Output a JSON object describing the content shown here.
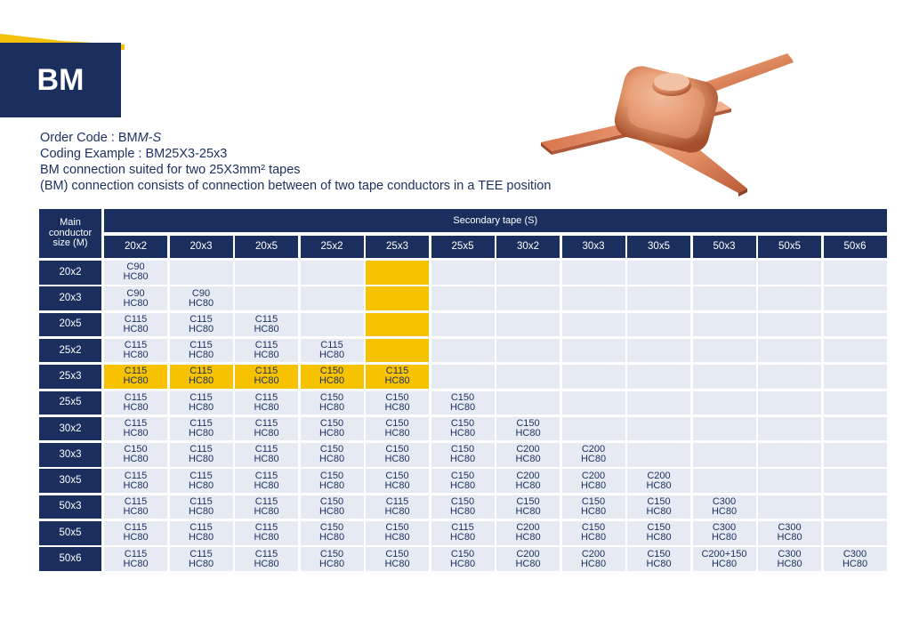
{
  "colors": {
    "navy": "#1b2f5f",
    "highlight": "#f7c300",
    "cell": "#e6eaf3",
    "accent": "#f4c20d"
  },
  "badge": "BM",
  "info": {
    "order_prefix": "Order Code : BM",
    "order_italic": "M-S",
    "coding": "Coding Example : BM25X3-25x3",
    "suited": "BM connection suited for two 25X3mm² tapes",
    "consists": "(BM) connection consists of connection between of two tape conductors  in a TEE position"
  },
  "table": {
    "main_header": "Main conductor size (M)",
    "secondary_header": "Secondary tape (S)",
    "columns": [
      "20x2",
      "20x3",
      "20x5",
      "25x2",
      "25x3",
      "25x5",
      "30x2",
      "30x3",
      "30x5",
      "50x3",
      "50x5",
      "50x6"
    ],
    "rows": [
      {
        "label": "20x2",
        "cells": [
          [
            "C90",
            "HC80"
          ]
        ]
      },
      {
        "label": "20x3",
        "cells": [
          [
            "C90",
            "HC80"
          ],
          [
            "C90",
            "HC80"
          ]
        ]
      },
      {
        "label": "20x5",
        "cells": [
          [
            "C115",
            "HC80"
          ],
          [
            "C115",
            "HC80"
          ],
          [
            "C115",
            "HC80"
          ]
        ]
      },
      {
        "label": "25x2",
        "cells": [
          [
            "C115",
            "HC80"
          ],
          [
            "C115",
            "HC80"
          ],
          [
            "C115",
            "HC80"
          ],
          [
            "C115",
            "HC80"
          ]
        ]
      },
      {
        "label": "25x3",
        "cells": [
          [
            "C115",
            "HC80"
          ],
          [
            "C115",
            "HC80"
          ],
          [
            "C115",
            "HC80"
          ],
          [
            "C150",
            "HC80"
          ],
          [
            "C115",
            "HC80"
          ]
        ]
      },
      {
        "label": "25x5",
        "cells": [
          [
            "C115",
            "HC80"
          ],
          [
            "C115",
            "HC80"
          ],
          [
            "C115",
            "HC80"
          ],
          [
            "C150",
            "HC80"
          ],
          [
            "C150",
            "HC80"
          ],
          [
            "C150",
            "HC80"
          ]
        ]
      },
      {
        "label": "30x2",
        "cells": [
          [
            "C115",
            "HC80"
          ],
          [
            "C115",
            "HC80"
          ],
          [
            "C115",
            "HC80"
          ],
          [
            "C150",
            "HC80"
          ],
          [
            "C150",
            "HC80"
          ],
          [
            "C150",
            "HC80"
          ],
          [
            "C150",
            "HC80"
          ]
        ]
      },
      {
        "label": "30x3",
        "cells": [
          [
            "C150",
            "HC80"
          ],
          [
            "C115",
            "HC80"
          ],
          [
            "C115",
            "HC80"
          ],
          [
            "C150",
            "HC80"
          ],
          [
            "C150",
            "HC80"
          ],
          [
            "C150",
            "HC80"
          ],
          [
            "C200",
            "HC80"
          ],
          [
            "C200",
            "HC80"
          ]
        ]
      },
      {
        "label": "30x5",
        "cells": [
          [
            "C115",
            "HC80"
          ],
          [
            "C115",
            "HC80"
          ],
          [
            "C115",
            "HC80"
          ],
          [
            "C150",
            "HC80"
          ],
          [
            "C150",
            "HC80"
          ],
          [
            "C150",
            "HC80"
          ],
          [
            "C200",
            "HC80"
          ],
          [
            "C200",
            "HC80"
          ],
          [
            "C200",
            "HC80"
          ]
        ]
      },
      {
        "label": "50x3",
        "cells": [
          [
            "C115",
            "HC80"
          ],
          [
            "C115",
            "HC80"
          ],
          [
            "C115",
            "HC80"
          ],
          [
            "C150",
            "HC80"
          ],
          [
            "C115",
            "HC80"
          ],
          [
            "C150",
            "HC80"
          ],
          [
            "C150",
            "HC80"
          ],
          [
            "C150",
            "HC80"
          ],
          [
            "C150",
            "HC80"
          ],
          [
            "C300",
            "HC80"
          ]
        ]
      },
      {
        "label": "50x5",
        "cells": [
          [
            "C115",
            "HC80"
          ],
          [
            "C115",
            "HC80"
          ],
          [
            "C115",
            "HC80"
          ],
          [
            "C150",
            "HC80"
          ],
          [
            "C150",
            "HC80"
          ],
          [
            "C115",
            "HC80"
          ],
          [
            "C200",
            "HC80"
          ],
          [
            "C150",
            "HC80"
          ],
          [
            "C150",
            "HC80"
          ],
          [
            "C300",
            "HC80"
          ],
          [
            "C300",
            "HC80"
          ]
        ]
      },
      {
        "label": "50x6",
        "cells": [
          [
            "C115",
            "HC80"
          ],
          [
            "C115",
            "HC80"
          ],
          [
            "C115",
            "HC80"
          ],
          [
            "C150",
            "HC80"
          ],
          [
            "C150",
            "HC80"
          ],
          [
            "C150",
            "HC80"
          ],
          [
            "C200",
            "HC80"
          ],
          [
            "C200",
            "HC80"
          ],
          [
            "C150",
            "HC80"
          ],
          [
            "C200+150",
            "HC80"
          ],
          [
            "C300",
            "HC80"
          ],
          [
            "C300",
            "HC80"
          ]
        ]
      }
    ],
    "highlight": {
      "row": "25x3",
      "column": "25x3"
    }
  }
}
